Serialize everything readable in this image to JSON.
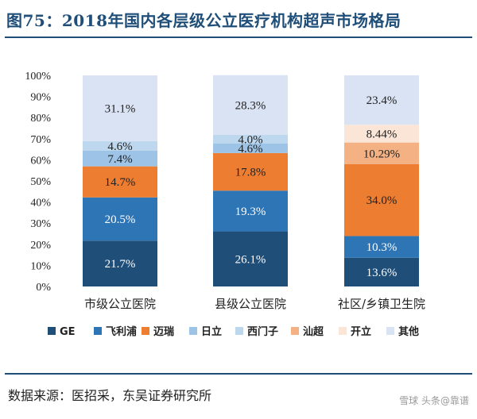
{
  "header": {
    "title": "图75：2018年国内各层级公立医疗机构超声市场格局"
  },
  "footer": {
    "source": "数据来源：医招采，东吴证券研究所",
    "watermark": "雪球 头条@靠谱"
  },
  "colors": {
    "GE": "#1f4e79",
    "飞利浦": "#2e75b6",
    "迈瑞": "#ed7d31",
    "日立": "#9dc3e6",
    "西门子": "#bdd7ee",
    "汕超": "#f4b183",
    "开立": "#fbe5d6",
    "其他": "#dae3f3"
  },
  "chart_data": {
    "type": "bar",
    "stacked": true,
    "title": "",
    "xlabel": "",
    "ylabel": "",
    "ylim": [
      0,
      100
    ],
    "yticks": [
      "0%",
      "10%",
      "20%",
      "30%",
      "40%",
      "50%",
      "60%",
      "70%",
      "80%",
      "90%",
      "100%"
    ],
    "categories": [
      "市级公立医院",
      "县级公立医院",
      "社区/乡镇卫生院"
    ],
    "legend_position": "bottom",
    "series": [
      {
        "name": "GE",
        "values": [
          21.7,
          26.1,
          13.6
        ],
        "labels": [
          "21.7%",
          "26.1%",
          "13.6%"
        ]
      },
      {
        "name": "飞利浦",
        "values": [
          20.5,
          19.3,
          10.3
        ],
        "labels": [
          "20.5%",
          "19.3%",
          "10.3%"
        ]
      },
      {
        "name": "迈瑞",
        "values": [
          14.7,
          17.8,
          34.0
        ],
        "labels": [
          "14.7%",
          "17.8%",
          "34.0%"
        ]
      },
      {
        "name": "日立",
        "values": [
          7.4,
          4.6,
          0
        ],
        "labels": [
          "7.4%",
          "4.6%",
          ""
        ]
      },
      {
        "name": "西门子",
        "values": [
          4.6,
          4.0,
          0
        ],
        "labels": [
          "4.6%",
          "4.0%",
          ""
        ]
      },
      {
        "name": "汕超",
        "values": [
          0,
          0,
          10.29
        ],
        "labels": [
          "",
          "",
          "10.29%"
        ]
      },
      {
        "name": "开立",
        "values": [
          0,
          0,
          8.44
        ],
        "labels": [
          "",
          "",
          "8.44%"
        ]
      },
      {
        "name": "其他",
        "values": [
          31.1,
          28.3,
          23.4
        ],
        "labels": [
          "31.1%",
          "28.3%",
          "23.4%"
        ]
      }
    ]
  }
}
